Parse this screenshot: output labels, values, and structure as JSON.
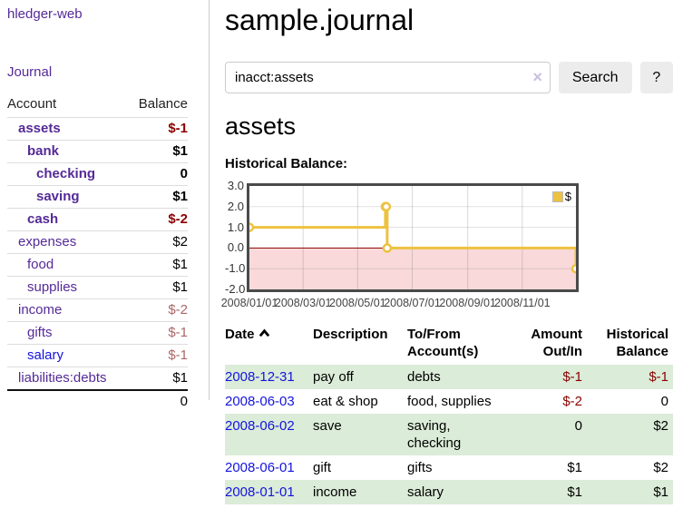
{
  "sidebar": {
    "brand": "hledger-web",
    "nav": [
      {
        "label": "Journal"
      }
    ],
    "accounts_table": {
      "headers": [
        "Account",
        "Balance"
      ],
      "rows": [
        {
          "name": "assets",
          "indent": 0,
          "bold": true,
          "balance": "$-1",
          "balance_style": "neg-strong"
        },
        {
          "name": "bank",
          "indent": 1,
          "bold": true,
          "balance": "$1",
          "balance_style": ""
        },
        {
          "name": "checking",
          "indent": 2,
          "bold": true,
          "balance": "0",
          "balance_style": ""
        },
        {
          "name": "saving",
          "indent": 2,
          "bold": true,
          "balance": "$1",
          "balance_style": ""
        },
        {
          "name": "cash",
          "indent": 1,
          "bold": true,
          "balance": "$-2",
          "balance_style": "neg-strong"
        },
        {
          "name": "expenses",
          "indent": 0,
          "bold": false,
          "balance": "$2",
          "balance_style": ""
        },
        {
          "name": "food",
          "indent": 1,
          "bold": false,
          "balance": "$1",
          "balance_style": ""
        },
        {
          "name": "supplies",
          "indent": 1,
          "bold": false,
          "balance": "$1",
          "balance_style": ""
        },
        {
          "name": "income",
          "indent": 0,
          "bold": false,
          "balance": "$-2",
          "balance_style": "neg-muted"
        },
        {
          "name": "gifts",
          "indent": 1,
          "bold": false,
          "balance": "$-1",
          "balance_style": "neg-muted"
        },
        {
          "name": "salary",
          "indent": 1,
          "bold": false,
          "balance": "$-1",
          "balance_style": "neg-muted",
          "link_color": "blue"
        },
        {
          "name": "liabilities:debts",
          "indent": 0,
          "bold": false,
          "balance": "$1",
          "balance_style": ""
        }
      ],
      "total": "0"
    }
  },
  "header": {
    "title": "sample.journal"
  },
  "search": {
    "value": "inacct:assets",
    "clear_icon": "×",
    "search_label": "Search",
    "help_label": "?"
  },
  "account_page": {
    "title": "assets",
    "chart_heading": "Historical Balance:"
  },
  "chart_data": {
    "type": "line",
    "style": "step",
    "title": "Historical Balance",
    "legend": "$",
    "legend_position": "top-right",
    "grid": true,
    "ylim": [
      -2,
      3
    ],
    "y_ticks": [
      {
        "value": 3,
        "label": "3.0"
      },
      {
        "value": 2,
        "label": "2.0"
      },
      {
        "value": 1,
        "label": "1.0"
      },
      {
        "value": 0,
        "label": "0.0"
      },
      {
        "value": -1,
        "label": "-1.0"
      },
      {
        "value": -2,
        "label": "-2.0"
      }
    ],
    "x_range": [
      "2008-01-01",
      "2008-12-31"
    ],
    "x_ticks": [
      {
        "date": "2008-01-01",
        "label": "2008/01/01"
      },
      {
        "date": "2008-03-01",
        "label": "2008/03/01"
      },
      {
        "date": "2008-05-01",
        "label": "2008/05/01"
      },
      {
        "date": "2008-07-01",
        "label": "2008/07/01"
      },
      {
        "date": "2008-09-01",
        "label": "2008/09/01"
      },
      {
        "date": "2008-11-01",
        "label": "2008/11/01"
      }
    ],
    "series": [
      {
        "name": "$",
        "points": [
          {
            "date": "2008-01-01",
            "value": 1
          },
          {
            "date": "2008-06-01",
            "value": 2
          },
          {
            "date": "2008-06-02",
            "value": 2
          },
          {
            "date": "2008-06-03",
            "value": 0
          },
          {
            "date": "2008-12-31",
            "value": -1
          }
        ]
      }
    ],
    "negative_region_shaded": true
  },
  "register_table": {
    "columns": [
      {
        "label": "Date",
        "sorted": "ascending"
      },
      {
        "label": "Description"
      },
      {
        "label": "To/From Account(s)"
      },
      {
        "label": "Amount Out/In"
      },
      {
        "label": "Historical Balance"
      }
    ],
    "rows": [
      {
        "date": "2008-12-31",
        "description": "pay off",
        "accounts": "debts",
        "amount": "$-1",
        "amount_negative": true,
        "balance": "$-1",
        "balance_negative": true
      },
      {
        "date": "2008-06-03",
        "description": "eat & shop",
        "accounts": "food, supplies",
        "amount": "$-2",
        "amount_negative": true,
        "balance": "0",
        "balance_negative": false
      },
      {
        "date": "2008-06-02",
        "description": "save",
        "accounts": "saving, checking",
        "amount": "0",
        "amount_negative": false,
        "balance": "$2",
        "balance_negative": false
      },
      {
        "date": "2008-06-01",
        "description": "gift",
        "accounts": "gifts",
        "amount": "$1",
        "amount_negative": false,
        "balance": "$2",
        "balance_negative": false
      },
      {
        "date": "2008-01-01",
        "description": "income",
        "accounts": "salary",
        "amount": "$1",
        "amount_negative": false,
        "balance": "$1",
        "balance_negative": false
      }
    ]
  },
  "colors": {
    "purple": "#552a97",
    "blue": "#1414dd",
    "negStrong": "#8b0000",
    "negMuted": "#ad6666",
    "rowGreen": "#dbecd8",
    "gold": "#EDC240",
    "pinkRegion": "#f9d9d9",
    "zeroLine": "#8b0000",
    "plotBorder": "#4a4a4a",
    "grid": "#dcdcdc",
    "divider": "#ccc",
    "buttonBg": "#ececec",
    "inputBorder": "#ccc",
    "clearIcon": "#c9bfe0"
  }
}
